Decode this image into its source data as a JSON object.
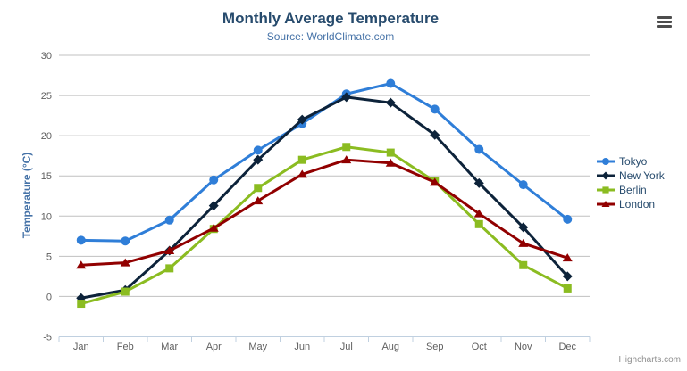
{
  "chart_data": {
    "type": "line",
    "title": "Monthly Average Temperature",
    "subtitle": "Source: WorldClimate.com",
    "categories": [
      "Jan",
      "Feb",
      "Mar",
      "Apr",
      "May",
      "Jun",
      "Jul",
      "Aug",
      "Sep",
      "Oct",
      "Nov",
      "Dec"
    ],
    "xlabel": "",
    "ylabel": "Temperature (°C)",
    "ylim": [
      -5,
      30
    ],
    "ytick_step": 5,
    "ytick_labels": [
      "-5",
      "0",
      "5",
      "10",
      "15",
      "20",
      "25",
      "30"
    ],
    "grid": true,
    "legend_position": "right",
    "series": [
      {
        "name": "Tokyo",
        "color": "#2f7ed8",
        "marker": "circle",
        "values": [
          7.0,
          6.9,
          9.5,
          14.5,
          18.2,
          21.5,
          25.2,
          26.5,
          23.3,
          18.3,
          13.9,
          9.6
        ]
      },
      {
        "name": "New York",
        "color": "#0d233a",
        "marker": "diamond",
        "values": [
          -0.2,
          0.8,
          5.7,
          11.3,
          17.0,
          22.0,
          24.8,
          24.1,
          20.1,
          14.1,
          8.6,
          2.5
        ]
      },
      {
        "name": "Berlin",
        "color": "#8bbc21",
        "marker": "square",
        "values": [
          -0.9,
          0.6,
          3.5,
          8.4,
          13.5,
          17.0,
          18.6,
          17.9,
          14.3,
          9.0,
          3.9,
          1.0
        ]
      },
      {
        "name": "London",
        "color": "#910000",
        "marker": "triangle",
        "values": [
          3.9,
          4.2,
          5.7,
          8.5,
          11.9,
          15.2,
          17.0,
          16.6,
          14.2,
          10.3,
          6.6,
          4.8
        ]
      }
    ]
  },
  "colors": {
    "title": "#274b6d",
    "subtitle": "#4572a7",
    "y_axis_title": "#4572a7",
    "axis_labels": "#606060",
    "gridline": "#c0c0c0",
    "axis_line": "#c0d0e0",
    "legend_text": "#274b6d",
    "credits_text": "#909090"
  },
  "export_menu": {
    "icon": "hamburger-menu-icon"
  },
  "credits": {
    "label": "Highcharts.com"
  }
}
